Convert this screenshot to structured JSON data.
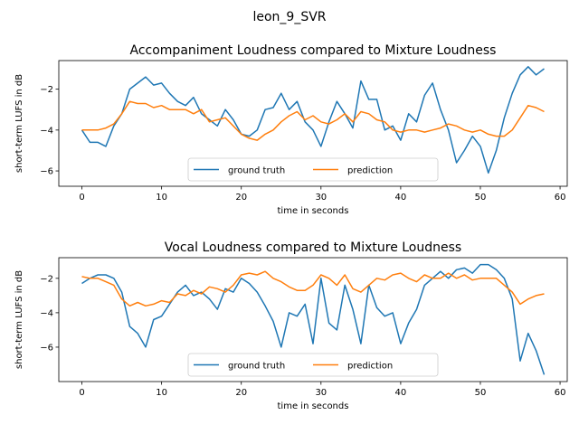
{
  "suptitle": "leon_9_SVR",
  "legend": {
    "loc": "lower center",
    "ncol": 2
  },
  "colors": {
    "ground_truth": "#1f77b4",
    "prediction": "#ff7f0e"
  },
  "chart_data": [
    {
      "type": "line",
      "title": "Accompaniment Loudness compared to Mixture Loudness",
      "xlabel": "time in seconds",
      "ylabel": "short-term LUFS in dB",
      "xlim": [
        -2.9,
        60.9
      ],
      "ylim": [
        -6.75,
        -0.6
      ],
      "xticks": [
        0,
        10,
        20,
        30,
        40,
        50,
        60
      ],
      "yticks": [
        -6,
        -4,
        -2
      ],
      "grid": false,
      "series": [
        {
          "name": "ground truth",
          "x": [
            0,
            1,
            2,
            3,
            4,
            5,
            6,
            7,
            8,
            9,
            10,
            11,
            12,
            13,
            14,
            15,
            16,
            17,
            18,
            19,
            20,
            21,
            22,
            23,
            24,
            25,
            26,
            27,
            28,
            29,
            30,
            31,
            32,
            33,
            34,
            35,
            36,
            37,
            38,
            39,
            40,
            41,
            42,
            43,
            44,
            45,
            46,
            47,
            48,
            49,
            50,
            51,
            52,
            53,
            54,
            55,
            56,
            57,
            58
          ],
          "y": [
            -4.0,
            -4.6,
            -4.6,
            -4.8,
            -3.8,
            -3.2,
            -2.0,
            -1.7,
            -1.4,
            -1.8,
            -1.7,
            -2.2,
            -2.6,
            -2.8,
            -2.4,
            -3.2,
            -3.5,
            -3.8,
            -3.0,
            -3.5,
            -4.2,
            -4.3,
            -4.0,
            -3.0,
            -2.9,
            -2.2,
            -3.0,
            -2.6,
            -3.6,
            -4.0,
            -4.8,
            -3.6,
            -2.6,
            -3.2,
            -3.9,
            -1.6,
            -2.5,
            -2.5,
            -4.0,
            -3.8,
            -4.5,
            -3.2,
            -3.6,
            -2.3,
            -1.7,
            -3.0,
            -4.0,
            -5.6,
            -5.0,
            -4.3,
            -4.8,
            -6.1,
            -5.0,
            -3.4,
            -2.2,
            -1.3,
            -0.9,
            -1.3,
            -1.0
          ]
        },
        {
          "name": "prediction",
          "x": [
            0,
            1,
            2,
            3,
            4,
            5,
            6,
            7,
            8,
            9,
            10,
            11,
            12,
            13,
            14,
            15,
            16,
            17,
            18,
            19,
            20,
            21,
            22,
            23,
            24,
            25,
            26,
            27,
            28,
            29,
            30,
            31,
            32,
            33,
            34,
            35,
            36,
            37,
            38,
            39,
            40,
            41,
            42,
            43,
            44,
            45,
            46,
            47,
            48,
            49,
            50,
            51,
            52,
            53,
            54,
            55,
            56,
            57,
            58
          ],
          "y": [
            -4.0,
            -4.0,
            -4.0,
            -3.9,
            -3.7,
            -3.2,
            -2.6,
            -2.7,
            -2.7,
            -2.9,
            -2.8,
            -3.0,
            -3.0,
            -3.0,
            -3.2,
            -3.0,
            -3.6,
            -3.5,
            -3.4,
            -3.8,
            -4.2,
            -4.4,
            -4.5,
            -4.2,
            -4.0,
            -3.6,
            -3.3,
            -3.1,
            -3.5,
            -3.3,
            -3.6,
            -3.7,
            -3.5,
            -3.2,
            -3.6,
            -3.1,
            -3.2,
            -3.5,
            -3.6,
            -4.0,
            -4.1,
            -4.0,
            -4.0,
            -4.1,
            -4.0,
            -3.9,
            -3.7,
            -3.8,
            -4.0,
            -4.1,
            -4.0,
            -4.2,
            -4.3,
            -4.3,
            -4.0,
            -3.4,
            -2.8,
            -2.9,
            -3.1
          ]
        }
      ]
    },
    {
      "type": "line",
      "title": "Vocal Loudness compared to Mixture Loudness",
      "xlabel": "time in seconds",
      "ylabel": "short-term LUFS in dB",
      "xlim": [
        -2.9,
        60.9
      ],
      "ylim": [
        -8.0,
        -0.8
      ],
      "xticks": [
        0,
        10,
        20,
        30,
        40,
        50,
        60
      ],
      "yticks": [
        -6,
        -4,
        -2
      ],
      "grid": false,
      "series": [
        {
          "name": "ground truth",
          "x": [
            0,
            1,
            2,
            3,
            4,
            5,
            6,
            7,
            8,
            9,
            10,
            11,
            12,
            13,
            14,
            15,
            16,
            17,
            18,
            19,
            20,
            21,
            22,
            23,
            24,
            25,
            26,
            27,
            28,
            29,
            30,
            31,
            32,
            33,
            34,
            35,
            36,
            37,
            38,
            39,
            40,
            41,
            42,
            43,
            44,
            45,
            46,
            47,
            48,
            49,
            50,
            51,
            52,
            53,
            54,
            55,
            56,
            57,
            58
          ],
          "y": [
            -2.3,
            -2.0,
            -1.8,
            -1.8,
            -2.0,
            -2.8,
            -4.8,
            -5.2,
            -6.0,
            -4.4,
            -4.2,
            -3.5,
            -2.8,
            -2.4,
            -3.0,
            -2.8,
            -3.2,
            -3.8,
            -2.6,
            -2.8,
            -2.0,
            -2.3,
            -2.8,
            -3.6,
            -4.5,
            -6.0,
            -4.0,
            -4.2,
            -3.5,
            -5.8,
            -2.0,
            -4.6,
            -5.0,
            -2.4,
            -3.8,
            -5.8,
            -2.4,
            -3.7,
            -4.2,
            -4.0,
            -5.8,
            -4.6,
            -3.8,
            -2.4,
            -2.0,
            -1.6,
            -2.0,
            -1.5,
            -1.4,
            -1.7,
            -1.2,
            -1.2,
            -1.5,
            -2.0,
            -3.2,
            -6.8,
            -5.2,
            -6.2,
            -7.6
          ]
        },
        {
          "name": "prediction",
          "x": [
            0,
            1,
            2,
            3,
            4,
            5,
            6,
            7,
            8,
            9,
            10,
            11,
            12,
            13,
            14,
            15,
            16,
            17,
            18,
            19,
            20,
            21,
            22,
            23,
            24,
            25,
            26,
            27,
            28,
            29,
            30,
            31,
            32,
            33,
            34,
            35,
            36,
            37,
            38,
            39,
            40,
            41,
            42,
            43,
            44,
            45,
            46,
            47,
            48,
            49,
            50,
            51,
            52,
            53,
            54,
            55,
            56,
            57,
            58
          ],
          "y": [
            -1.9,
            -2.0,
            -2.0,
            -2.2,
            -2.4,
            -3.2,
            -3.6,
            -3.4,
            -3.6,
            -3.5,
            -3.3,
            -3.4,
            -2.9,
            -3.0,
            -2.7,
            -2.9,
            -2.5,
            -2.6,
            -2.8,
            -2.4,
            -1.8,
            -1.7,
            -1.8,
            -1.6,
            -2.0,
            -2.2,
            -2.5,
            -2.7,
            -2.7,
            -2.4,
            -1.8,
            -2.0,
            -2.4,
            -1.8,
            -2.6,
            -2.8,
            -2.4,
            -2.0,
            -2.1,
            -1.8,
            -1.7,
            -2.0,
            -2.2,
            -1.8,
            -2.0,
            -2.0,
            -1.7,
            -2.0,
            -1.8,
            -2.1,
            -2.0,
            -2.0,
            -2.0,
            -2.4,
            -2.8,
            -3.5,
            -3.2,
            -3.0,
            -2.9
          ]
        }
      ]
    }
  ]
}
